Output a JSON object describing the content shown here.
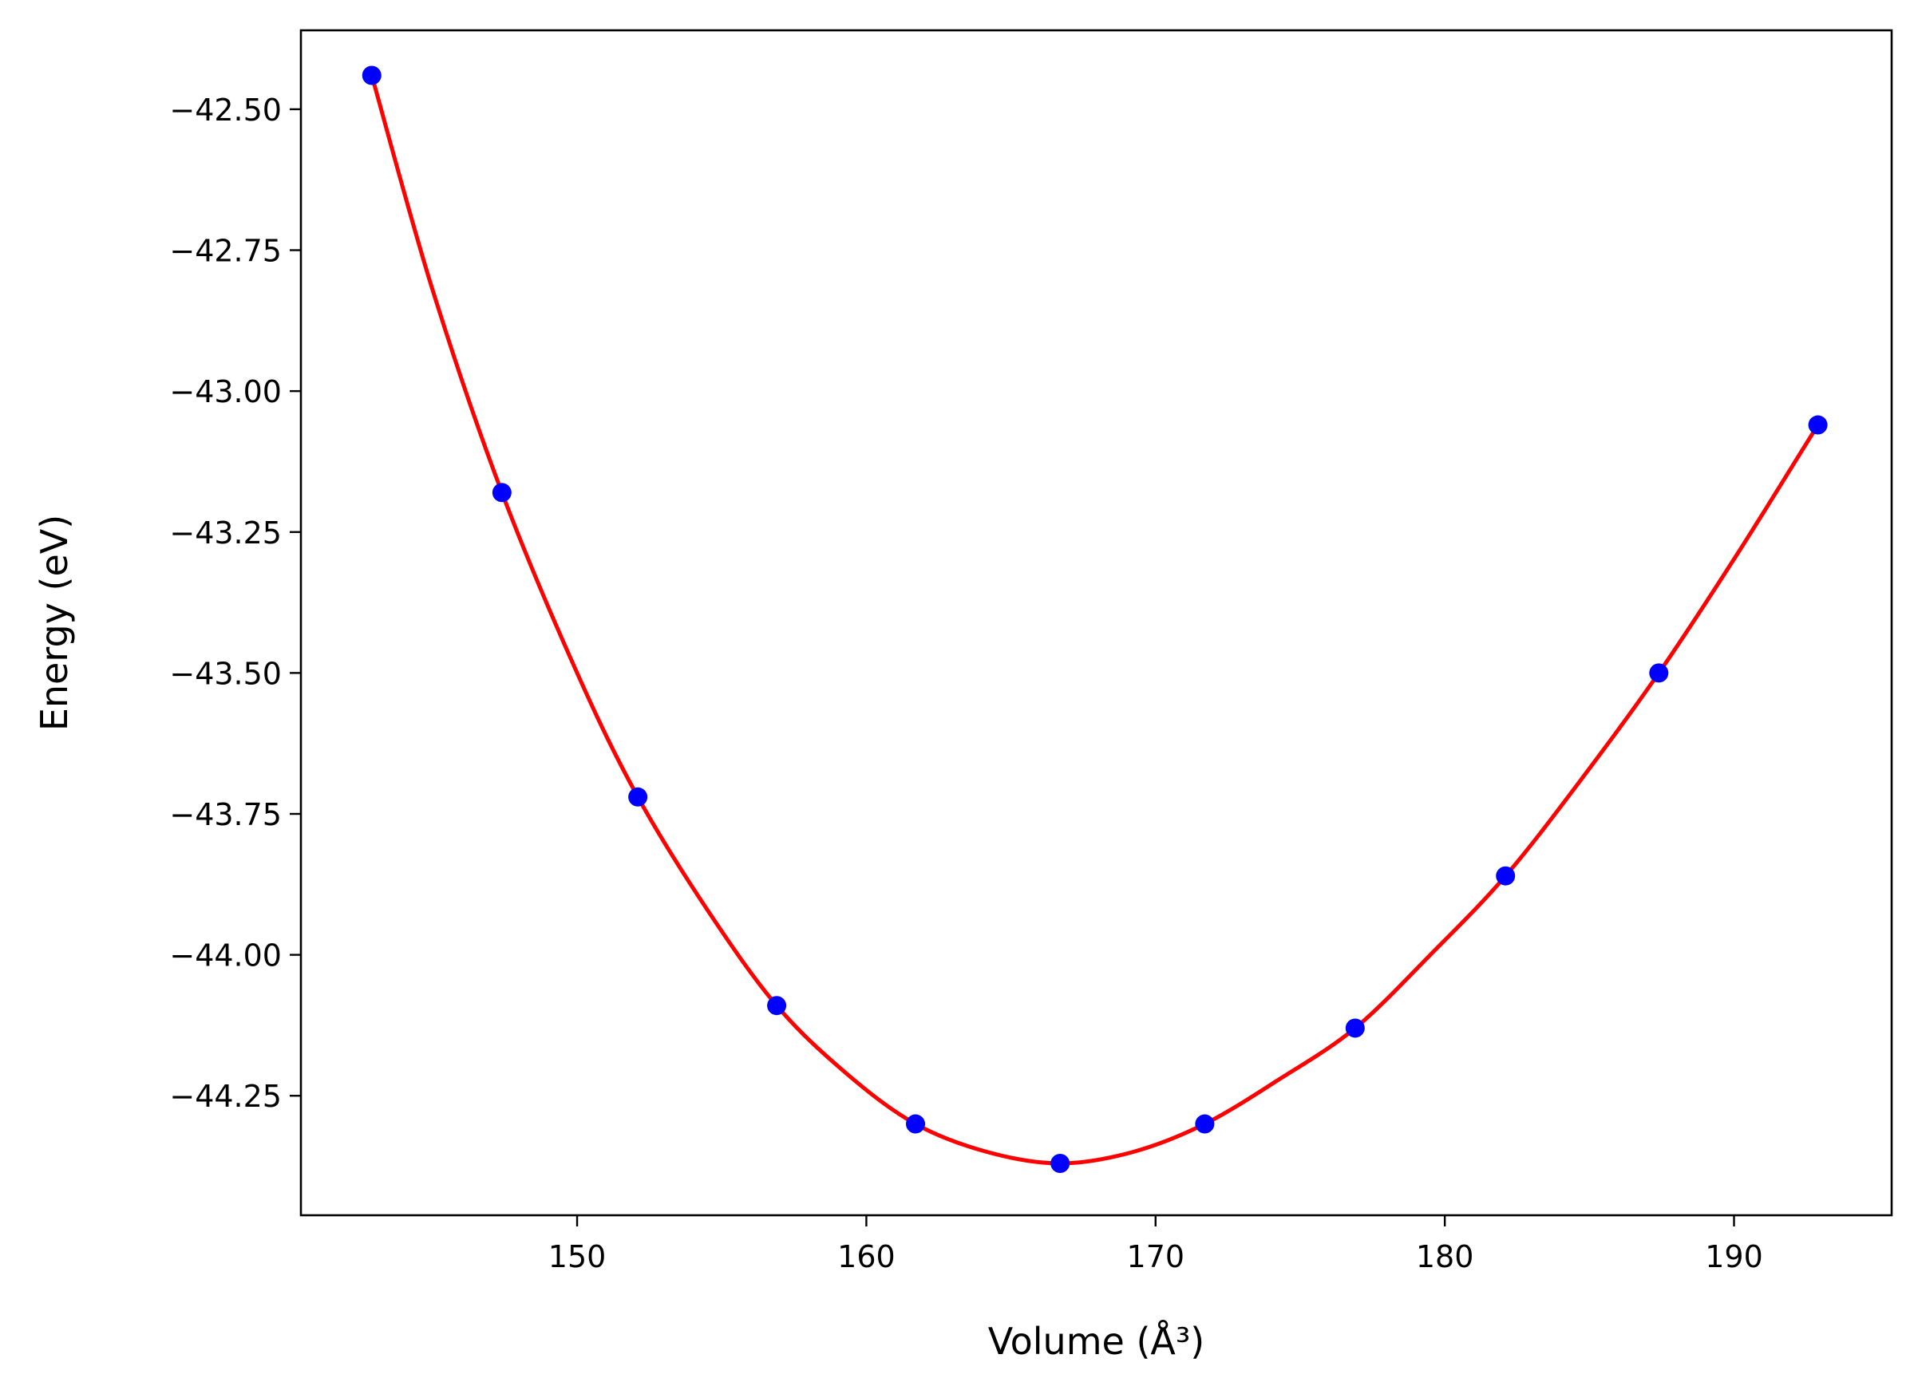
{
  "chart_data": {
    "type": "scatter",
    "xlabel": "Volume (Å³)",
    "ylabel": "Energy (eV)",
    "xlim": [
      140.45,
      195.45
    ],
    "ylim": [
      -44.462,
      -42.36
    ],
    "x_ticks": [
      150,
      160,
      170,
      180,
      190
    ],
    "x_tick_labels": [
      "150",
      "160",
      "170",
      "180",
      "190"
    ],
    "y_ticks": [
      -42.5,
      -42.75,
      -43.0,
      -43.25,
      -43.5,
      -43.75,
      -44.0,
      -44.25
    ],
    "y_tick_labels": [
      "−42.50",
      "−42.75",
      "−43.00",
      "−43.25",
      "−43.50",
      "−43.75",
      "−44.00",
      "−44.25"
    ],
    "grid": false,
    "legend": "none",
    "series": [
      {
        "kind": "points",
        "color": "#0000ff",
        "x": [
          142.9,
          147.4,
          152.1,
          156.9,
          161.7,
          166.7,
          171.7,
          176.9,
          182.1,
          187.4,
          192.9
        ],
        "y": [
          -42.44,
          -43.18,
          -43.72,
          -44.09,
          -44.3,
          -44.37,
          -44.3,
          -44.13,
          -43.86,
          -43.5,
          -43.06
        ]
      },
      {
        "kind": "fit-curve",
        "color": "#ff0000",
        "x": [
          142.9,
          145.0,
          147.4,
          150.0,
          152.1,
          154.5,
          156.9,
          159.3,
          161.7,
          164.2,
          166.7,
          169.2,
          171.7,
          174.3,
          176.9,
          179.5,
          182.1,
          184.7,
          187.4,
          190.1,
          192.9
        ],
        "y": [
          -42.44,
          -42.82,
          -43.18,
          -43.5,
          -43.72,
          -43.92,
          -44.09,
          -44.21,
          -44.3,
          -44.35,
          -44.37,
          -44.35,
          -44.3,
          -44.22,
          -44.13,
          -44.0,
          -43.86,
          -43.69,
          -43.5,
          -43.29,
          -43.06
        ]
      }
    ]
  }
}
